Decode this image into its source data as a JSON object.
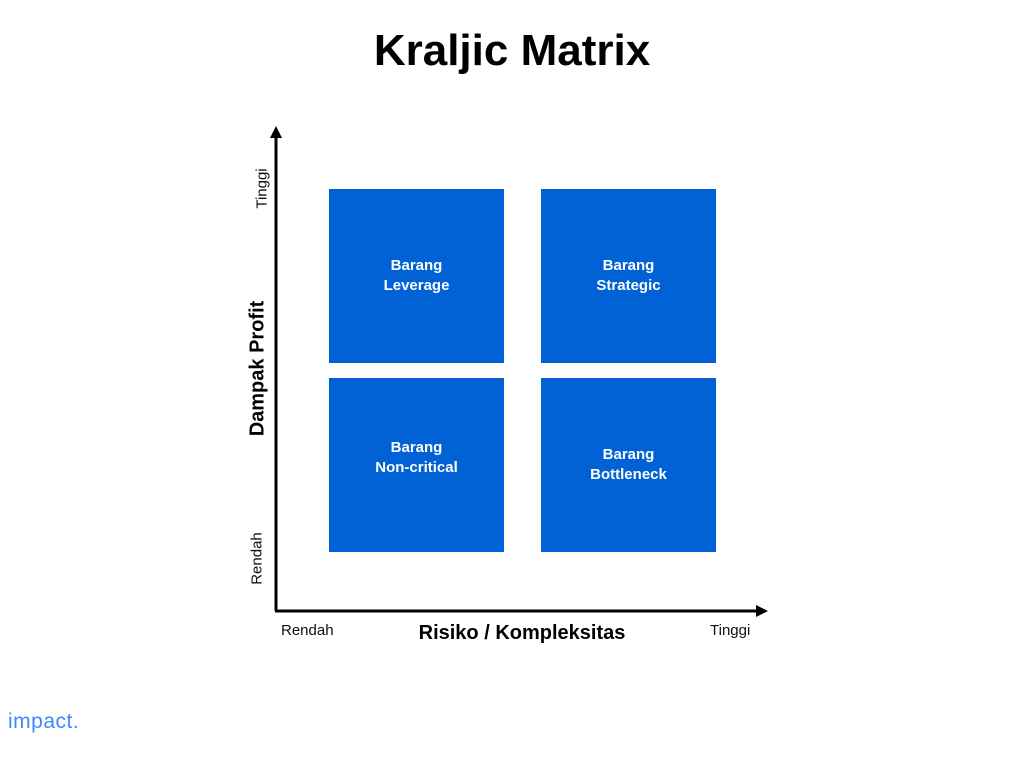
{
  "title": "Kraljic Matrix",
  "y_axis": {
    "label": "Dampak Profit",
    "low": "Rendah",
    "high": "Tinggi"
  },
  "x_axis": {
    "label": "Risiko / Kompleksitas",
    "low": "Rendah",
    "high": "Tinggi"
  },
  "quadrants": [
    {
      "line1": "Barang",
      "line2": "Leverage"
    },
    {
      "line1": "Barang",
      "line2": "Strategic"
    },
    {
      "line1": "Barang",
      "line2": "Non-critical"
    },
    {
      "line1": "Barang",
      "line2": "Bottleneck"
    }
  ],
  "colors": {
    "quadrant": "#0062d4",
    "logo": "#3d8bff"
  },
  "logo": "impact."
}
